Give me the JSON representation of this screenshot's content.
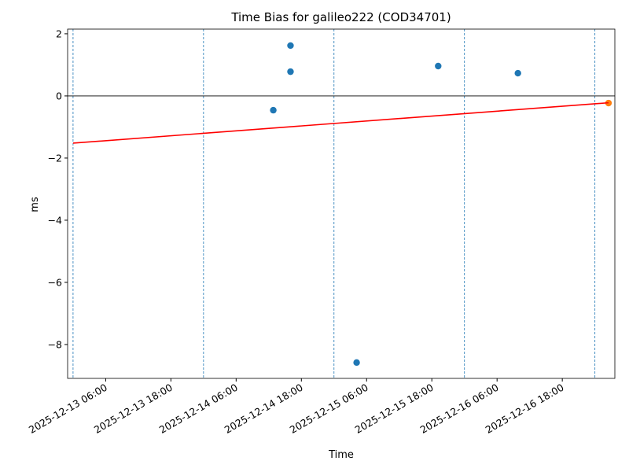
{
  "chart_data": {
    "type": "scatter",
    "title": "Time Bias for galileo222 (COD34701)",
    "x_label": "Time",
    "y_label": "ms",
    "xlim": [
      "2025-12-12 23:00",
      "2025-12-17 03:40"
    ],
    "xticks": [
      "2025-12-13 06:00",
      "2025-12-13 18:00",
      "2025-12-14 06:00",
      "2025-12-14 18:00",
      "2025-12-15 06:00",
      "2025-12-15 18:00",
      "2025-12-16 06:00",
      "2025-12-16 18:00"
    ],
    "ylim": [
      -9.09,
      2.15
    ],
    "yticks": [
      {
        "value": -8,
        "label": "−8"
      },
      {
        "value": -6,
        "label": "−6"
      },
      {
        "value": -4,
        "label": "−4"
      },
      {
        "value": -2,
        "label": "−2"
      },
      0,
      2
    ],
    "hline": 0,
    "hline_color": "#000000",
    "vlines": [
      "2025-12-13 00:00",
      "2025-12-14 00:00",
      "2025-12-15 00:00",
      "2025-12-16 00:00",
      "2025-12-17 00:00"
    ],
    "vline_color": "#1f77b4",
    "series": [
      {
        "type": "scatter",
        "color": "#1f77b4",
        "x": [
          "2025-12-14 12:50",
          "2025-12-14 16:00",
          "2025-12-14 16:00",
          "2025-12-15 04:10",
          "2025-12-15 19:10",
          "2025-12-16 09:50"
        ],
        "values": [
          -0.46,
          1.62,
          0.78,
          -8.58,
          0.96,
          0.73
        ]
      },
      {
        "type": "scatter",
        "color": "#ff7f0e",
        "x": [
          "2025-12-17 02:30"
        ],
        "values": [
          -0.23
        ]
      },
      {
        "type": "line",
        "color": "#ff0000",
        "x": [
          "2025-12-13 00:00",
          "2025-12-17 02:30"
        ],
        "values": [
          -1.52,
          -0.22
        ]
      }
    ]
  }
}
